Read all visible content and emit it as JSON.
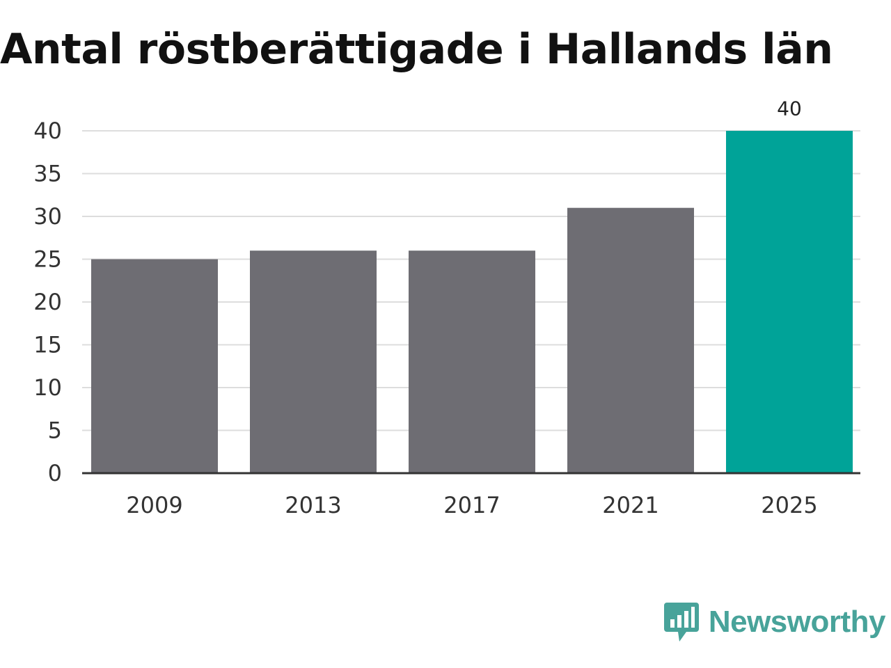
{
  "chart_data": {
    "type": "bar",
    "title": "Antal röstberättigade i Hallands län",
    "categories": [
      "2009",
      "2013",
      "2017",
      "2021",
      "2025"
    ],
    "values": [
      25,
      26,
      26,
      31,
      40
    ],
    "ylim": [
      0,
      40
    ],
    "yticks": [
      0,
      5,
      10,
      15,
      20,
      25,
      30,
      35,
      40
    ],
    "grid": true,
    "highlight_index": 4,
    "labeled_index": 4,
    "colors": {
      "bar": "#6e6d73",
      "highlight": "#00a398",
      "grid": "#dddddd",
      "axis": "#333333"
    }
  },
  "brand": {
    "name": "Newsworthy",
    "icon": "newsworthy-logo-icon",
    "color": "#48a39a"
  }
}
